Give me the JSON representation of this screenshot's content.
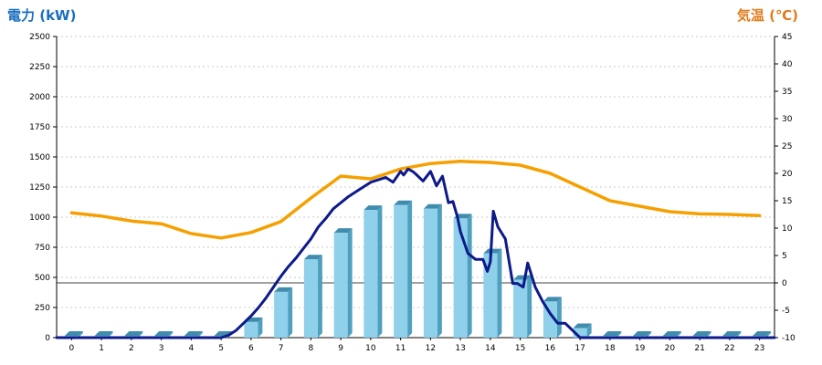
{
  "chart_data": {
    "type": "bar+line",
    "title_left": "電力 (kW)",
    "title_right": "気温 (℃)",
    "colors": {
      "left_title": "#1a6fc0",
      "right_title": "#e07b1a",
      "bar_front": "#8fd0ea",
      "bar_side": "#4f9fbf",
      "bar_top": "#3f8cad",
      "power_line": "#0d1a8a",
      "temp_line": "#f5a000",
      "grid": "#bbbbbb",
      "zero_line": "#000000"
    },
    "grid": true,
    "x_categories": [
      "0",
      "1",
      "2",
      "3",
      "4",
      "5",
      "6",
      "7",
      "8",
      "9",
      "10",
      "11",
      "12",
      "13",
      "14",
      "15",
      "16",
      "17",
      "18",
      "19",
      "20",
      "21",
      "22",
      "23"
    ],
    "y_left": {
      "min": 0,
      "max": 2500,
      "step": 250,
      "ticks": [
        "0",
        "250",
        "500",
        "750",
        "1000",
        "1250",
        "1500",
        "1750",
        "2000",
        "2250",
        "2500"
      ]
    },
    "y_right": {
      "min": -10,
      "max": 45,
      "step": 5,
      "ticks": [
        "-10",
        "-5",
        "0",
        "5",
        "10",
        "15",
        "20",
        "25",
        "30",
        "35",
        "40",
        "45"
      ]
    },
    "bar_series": {
      "values": [
        15,
        15,
        15,
        15,
        15,
        15,
        130,
        380,
        650,
        870,
        1060,
        1100,
        1070,
        990,
        700,
        480,
        300,
        80,
        15,
        15,
        15,
        15,
        15,
        15
      ]
    },
    "power_line_series": {
      "x": [
        5.0,
        5.25,
        5.5,
        5.75,
        6.0,
        6.25,
        6.5,
        6.75,
        7.0,
        7.25,
        7.5,
        7.75,
        8.0,
        8.25,
        8.5,
        8.75,
        9.0,
        9.25,
        9.5,
        9.75,
        10.0,
        10.25,
        10.5,
        10.75,
        11.0,
        11.1,
        11.25,
        11.4,
        11.5,
        11.75,
        12.0,
        12.2,
        12.4,
        12.6,
        12.75,
        12.9,
        13.0,
        13.25,
        13.5,
        13.75,
        13.9,
        14.0,
        14.1,
        14.25,
        14.5,
        14.75,
        14.9,
        15.1,
        15.25,
        15.4,
        15.5,
        15.75,
        16.0,
        16.25,
        16.5,
        16.75,
        17.0,
        17.25
      ],
      "y": [
        0,
        20,
        60,
        120,
        180,
        250,
        330,
        420,
        510,
        590,
        660,
        740,
        820,
        920,
        990,
        1070,
        1120,
        1170,
        1210,
        1250,
        1290,
        1310,
        1330,
        1290,
        1380,
        1350,
        1400,
        1380,
        1360,
        1300,
        1380,
        1260,
        1340,
        1120,
        1130,
        1000,
        880,
        700,
        650,
        650,
        550,
        630,
        1050,
        920,
        820,
        450,
        450,
        420,
        620,
        500,
        420,
        300,
        200,
        120,
        120,
        60,
        0,
        0
      ]
    },
    "temp_line_series": {
      "x": [
        0,
        1,
        2,
        3,
        4,
        5,
        6,
        7,
        8,
        9,
        10,
        11,
        12,
        13,
        14,
        15,
        16,
        17,
        18,
        19,
        20,
        21,
        22,
        23
      ],
      "y": [
        12.8,
        12.2,
        11.3,
        10.8,
        9.0,
        8.2,
        9.2,
        11.2,
        15.5,
        19.5,
        19.0,
        20.8,
        21.8,
        22.2,
        22.0,
        21.5,
        20.0,
        17.5,
        15.0,
        14.0,
        13.0,
        12.6,
        12.5,
        12.3
      ]
    }
  }
}
